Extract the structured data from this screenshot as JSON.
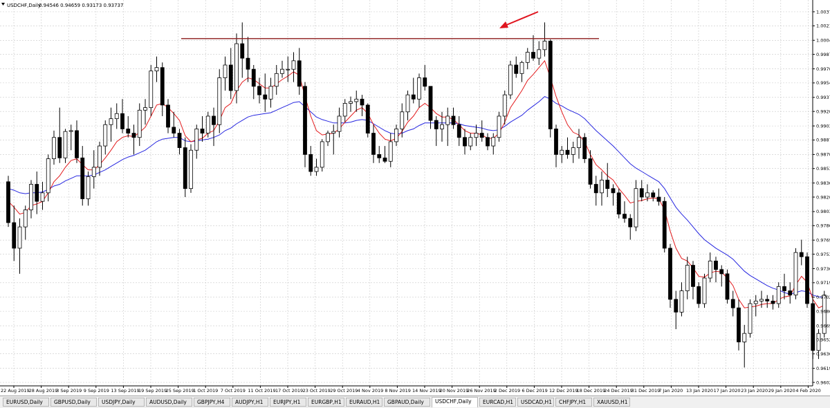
{
  "chart_data": {
    "type": "candlestick",
    "symbol": "USDCHF,Daily",
    "ohlc_text": "0.94546 0.94659 0.93173 0.93737",
    "y_ticks": [
      "1.00375",
      "1.00210",
      "1.00040",
      "0.99875",
      "0.99705",
      "0.99540",
      "0.99370",
      "0.99205",
      "0.99035",
      "0.98870",
      "0.98700",
      "0.98535",
      "0.98365",
      "0.98200",
      "0.98030",
      "0.97865",
      "0.97695",
      "0.97530",
      "0.97360",
      "0.97195",
      "0.97025",
      "0.96860",
      "0.96690",
      "0.96525",
      "0.96360",
      "0.96190",
      "0.96025"
    ],
    "x_ticks": [
      "22 Aug 2019",
      "28 Aug 2019",
      "3 Sep 2019",
      "9 Sep 2019",
      "13 Sep 2019",
      "19 Sep 2019",
      "25 Sep 2019",
      "1 Oct 2019",
      "7 Oct 2019",
      "11 Oct 2019",
      "17 Oct 2019",
      "23 Oct 2019",
      "29 Oct 2019",
      "4 Nov 2019",
      "8 Nov 2019",
      "14 Nov 2019",
      "20 Nov 2019",
      "26 Nov 2019",
      "2 Dec 2019",
      "6 Dec 2019",
      "12 Dec 2019",
      "18 Dec 2019",
      "24 Dec 2019",
      "31 Dec 2019",
      "7 Jan 2020",
      "13 Jan 2020",
      "17 Jan 2020",
      "23 Jan 2020",
      "29 Jan 2020",
      "4 Feb 2020"
    ],
    "ylim": [
      0.96025,
      1.00375
    ],
    "grid": true,
    "resistance_level": 1.0006,
    "candles": [
      [
        0.9838,
        0.9845,
        0.9785,
        0.979
      ],
      [
        0.979,
        0.981,
        0.9745,
        0.976
      ],
      [
        0.976,
        0.9795,
        0.973,
        0.9785
      ],
      [
        0.9785,
        0.981,
        0.977,
        0.9805
      ],
      [
        0.9805,
        0.984,
        0.9795,
        0.9835
      ],
      [
        0.9835,
        0.985,
        0.98,
        0.9815
      ],
      [
        0.9815,
        0.9838,
        0.9805,
        0.9825
      ],
      [
        0.9825,
        0.987,
        0.9815,
        0.9865
      ],
      [
        0.9865,
        0.9898,
        0.9858,
        0.989
      ],
      [
        0.989,
        0.9925,
        0.986,
        0.9866
      ],
      [
        0.9866,
        0.99,
        0.986,
        0.9897
      ],
      [
        0.9897,
        0.9905,
        0.9875,
        0.9898
      ],
      [
        0.9898,
        0.991,
        0.986,
        0.9866
      ],
      [
        0.9866,
        0.988,
        0.981,
        0.9818
      ],
      [
        0.9818,
        0.985,
        0.981,
        0.9844
      ],
      [
        0.9844,
        0.9875,
        0.983,
        0.9855
      ],
      [
        0.9855,
        0.9885,
        0.9845,
        0.988
      ],
      [
        0.988,
        0.991,
        0.987,
        0.9905
      ],
      [
        0.9905,
        0.9925,
        0.9885,
        0.9912
      ],
      [
        0.9912,
        0.993,
        0.99,
        0.9918
      ],
      [
        0.9918,
        0.9935,
        0.9895,
        0.99
      ],
      [
        0.99,
        0.9915,
        0.989,
        0.9895
      ],
      [
        0.9895,
        0.9905,
        0.987,
        0.989
      ],
      [
        0.989,
        0.993,
        0.988,
        0.9922
      ],
      [
        0.9922,
        0.9935,
        0.9905,
        0.9925
      ],
      [
        0.9925,
        0.9975,
        0.9915,
        0.9968
      ],
      [
        0.9968,
        0.9985,
        0.9955,
        0.9972
      ],
      [
        0.9972,
        0.9978,
        0.9915,
        0.9928
      ],
      [
        0.9928,
        0.9935,
        0.9895,
        0.9902
      ],
      [
        0.9902,
        0.992,
        0.989,
        0.9895
      ],
      [
        0.9895,
        0.99,
        0.987,
        0.9878
      ],
      [
        0.9878,
        0.989,
        0.982,
        0.983
      ],
      [
        0.983,
        0.9882,
        0.9825,
        0.9875
      ],
      [
        0.9875,
        0.9905,
        0.9865,
        0.99
      ],
      [
        0.99,
        0.9915,
        0.9885,
        0.9895
      ],
      [
        0.9895,
        0.992,
        0.989,
        0.9915
      ],
      [
        0.9915,
        0.9925,
        0.988,
        0.9905
      ],
      [
        0.9905,
        0.997,
        0.9895,
        0.996
      ],
      [
        0.996,
        0.9985,
        0.9945,
        0.9975
      ],
      [
        0.9975,
        0.9995,
        0.9935,
        0.9945
      ],
      [
        0.9945,
        1.0012,
        0.993,
        1.0
      ],
      [
        1.0,
        1.0025,
        0.996,
        0.9983
      ],
      [
        0.9983,
        1.0008,
        0.9955,
        0.997
      ],
      [
        0.997,
        0.9975,
        0.9935,
        0.995
      ],
      [
        0.995,
        0.996,
        0.993,
        0.994
      ],
      [
        0.994,
        0.9965,
        0.992,
        0.9935
      ],
      [
        0.9935,
        0.996,
        0.9925,
        0.995
      ],
      [
        0.995,
        0.9975,
        0.994,
        0.9965
      ],
      [
        0.9965,
        0.998,
        0.996,
        0.997
      ],
      [
        0.997,
        0.9985,
        0.9955,
        0.997
      ],
      [
        0.997,
        0.999,
        0.9955,
        0.998
      ],
      [
        0.998,
        0.9995,
        0.994,
        0.995
      ],
      [
        0.995,
        0.9955,
        0.9855,
        0.987
      ],
      [
        0.987,
        0.988,
        0.9845,
        0.985
      ],
      [
        0.985,
        0.9865,
        0.9845,
        0.9855
      ],
      [
        0.9855,
        0.9888,
        0.985,
        0.9885
      ],
      [
        0.9885,
        0.9898,
        0.988,
        0.9895
      ],
      [
        0.9895,
        0.9905,
        0.987,
        0.9897
      ],
      [
        0.9897,
        0.9925,
        0.989,
        0.9915
      ],
      [
        0.9915,
        0.9935,
        0.9908,
        0.993
      ],
      [
        0.993,
        0.9938,
        0.992,
        0.9932
      ],
      [
        0.9932,
        0.9945,
        0.992,
        0.9935
      ],
      [
        0.9935,
        0.994,
        0.9915,
        0.9928
      ],
      [
        0.9928,
        0.993,
        0.989,
        0.9895
      ],
      [
        0.9895,
        0.9905,
        0.986,
        0.987
      ],
      [
        0.987,
        0.988,
        0.986,
        0.9866
      ],
      [
        0.9866,
        0.988,
        0.986,
        0.9862
      ],
      [
        0.9862,
        0.9895,
        0.9855,
        0.9885
      ],
      [
        0.9885,
        0.9905,
        0.988,
        0.99
      ],
      [
        0.99,
        0.993,
        0.989,
        0.992
      ],
      [
        0.992,
        0.9945,
        0.991,
        0.994
      ],
      [
        0.994,
        0.996,
        0.993,
        0.9935
      ],
      [
        0.9935,
        0.9965,
        0.9925,
        0.996
      ],
      [
        0.996,
        0.9975,
        0.9945,
        0.995
      ],
      [
        0.995,
        0.995,
        0.99,
        0.991
      ],
      [
        0.991,
        0.9915,
        0.988,
        0.99
      ],
      [
        0.99,
        0.992,
        0.9885,
        0.9905
      ],
      [
        0.9905,
        0.9925,
        0.988,
        0.9915
      ],
      [
        0.9915,
        0.9925,
        0.99,
        0.9905
      ],
      [
        0.9905,
        0.9915,
        0.988,
        0.989
      ],
      [
        0.989,
        0.99,
        0.987,
        0.988
      ],
      [
        0.988,
        0.9895,
        0.9875,
        0.989
      ],
      [
        0.989,
        0.9905,
        0.988,
        0.9895
      ],
      [
        0.9895,
        0.991,
        0.9885,
        0.989
      ],
      [
        0.989,
        0.9895,
        0.9875,
        0.988
      ],
      [
        0.988,
        0.9895,
        0.987,
        0.989
      ],
      [
        0.989,
        0.992,
        0.9885,
        0.9915
      ],
      [
        0.9915,
        0.9945,
        0.9905,
        0.994
      ],
      [
        0.994,
        0.998,
        0.9935,
        0.9975
      ],
      [
        0.9975,
        0.9985,
        0.996,
        0.9965
      ],
      [
        0.9965,
        0.998,
        0.9955,
        0.9978
      ],
      [
        0.9978,
        0.9995,
        0.997,
        0.999
      ],
      [
        0.999,
        1.001,
        0.998,
        0.9983
      ],
      [
        0.9983,
        1.0003,
        0.9975,
        0.9993
      ],
      [
        0.9993,
        1.0025,
        0.9985,
        1.0003
      ],
      [
        1.0003,
        1.0005,
        0.989,
        0.99
      ],
      [
        0.99,
        0.9905,
        0.9855,
        0.987
      ],
      [
        0.987,
        0.988,
        0.986,
        0.9875
      ],
      [
        0.9875,
        0.989,
        0.9865,
        0.987
      ],
      [
        0.987,
        0.9885,
        0.986,
        0.9878
      ],
      [
        0.9878,
        0.99,
        0.9865,
        0.989
      ],
      [
        0.989,
        0.9895,
        0.986,
        0.9865
      ],
      [
        0.9865,
        0.9875,
        0.983,
        0.9835
      ],
      [
        0.9835,
        0.9845,
        0.981,
        0.9825
      ],
      [
        0.9825,
        0.985,
        0.981,
        0.984
      ],
      [
        0.984,
        0.986,
        0.982,
        0.983
      ],
      [
        0.983,
        0.9835,
        0.981,
        0.9825
      ],
      [
        0.9825,
        0.983,
        0.9795,
        0.98
      ],
      [
        0.98,
        0.9815,
        0.979,
        0.9795
      ],
      [
        0.9795,
        0.98,
        0.977,
        0.9785
      ],
      [
        0.9785,
        0.984,
        0.978,
        0.983
      ],
      [
        0.983,
        0.984,
        0.9815,
        0.982
      ],
      [
        0.982,
        0.9835,
        0.9815,
        0.9825
      ],
      [
        0.9825,
        0.9828,
        0.9815,
        0.982
      ],
      [
        0.982,
        0.983,
        0.981,
        0.9815
      ],
      [
        0.9815,
        0.982,
        0.9755,
        0.976
      ],
      [
        0.976,
        0.9765,
        0.969,
        0.97
      ],
      [
        0.97,
        0.971,
        0.9665,
        0.9685
      ],
      [
        0.9685,
        0.972,
        0.968,
        0.971
      ],
      [
        0.971,
        0.975,
        0.97,
        0.974
      ],
      [
        0.974,
        0.9745,
        0.97,
        0.9715
      ],
      [
        0.9715,
        0.972,
        0.969,
        0.9695
      ],
      [
        0.9695,
        0.973,
        0.969,
        0.9725
      ],
      [
        0.9725,
        0.9755,
        0.972,
        0.9745
      ],
      [
        0.9745,
        0.975,
        0.972,
        0.9735
      ],
      [
        0.9735,
        0.974,
        0.9715,
        0.973
      ],
      [
        0.973,
        0.9735,
        0.9695,
        0.97
      ],
      [
        0.97,
        0.971,
        0.968,
        0.969
      ],
      [
        0.969,
        0.97,
        0.964,
        0.965
      ],
      [
        0.965,
        0.967,
        0.962,
        0.966
      ],
      [
        0.966,
        0.97,
        0.9655,
        0.9695
      ],
      [
        0.9695,
        0.9705,
        0.968,
        0.9698
      ],
      [
        0.9698,
        0.971,
        0.969,
        0.97
      ],
      [
        0.97,
        0.9705,
        0.969,
        0.9698
      ],
      [
        0.9698,
        0.9705,
        0.9688,
        0.9695
      ],
      [
        0.9695,
        0.972,
        0.969,
        0.9715
      ],
      [
        0.9715,
        0.973,
        0.97,
        0.971
      ],
      [
        0.971,
        0.972,
        0.9695,
        0.9705
      ],
      [
        0.9705,
        0.976,
        0.97,
        0.9755
      ],
      [
        0.9755,
        0.977,
        0.974,
        0.975
      ],
      [
        0.975,
        0.9755,
        0.969,
        0.9695
      ],
      [
        0.9695,
        0.97,
        0.963,
        0.964
      ],
      [
        0.964,
        0.9665,
        0.963,
        0.966
      ],
      [
        0.966,
        0.971,
        0.9655,
        0.9705
      ]
    ],
    "ma_fast": [
      0.9815,
      0.9808,
      0.98,
      0.9802,
      0.981,
      0.9812,
      0.9815,
      0.9825,
      0.9838,
      0.9845,
      0.9855,
      0.9863,
      0.9865,
      0.9858,
      0.9852,
      0.9852,
      0.9858,
      0.9866,
      0.9875,
      0.9885,
      0.989,
      0.9892,
      0.9891,
      0.9896,
      0.9902,
      0.9915,
      0.9928,
      0.993,
      0.9925,
      0.9918,
      0.991,
      0.9892,
      0.9885,
      0.9887,
      0.9889,
      0.9895,
      0.9898,
      0.991,
      0.9925,
      0.993,
      0.9945,
      0.9955,
      0.996,
      0.9958,
      0.9953,
      0.9948,
      0.9948,
      0.9953,
      0.9958,
      0.9962,
      0.9967,
      0.9963,
      0.9938,
      0.9915,
      0.9898,
      0.9893,
      0.9894,
      0.9895,
      0.99,
      0.9908,
      0.9915,
      0.9922,
      0.9925,
      0.9918,
      0.9905,
      0.9895,
      0.9888,
      0.9886,
      0.9889,
      0.9897,
      0.9908,
      0.9915,
      0.9925,
      0.993,
      0.9925,
      0.9918,
      0.9914,
      0.9914,
      0.9911,
      0.9905,
      0.9898,
      0.9895,
      0.9895,
      0.9893,
      0.9889,
      0.9889,
      0.9895,
      0.9908,
      0.9925,
      0.9935,
      0.9945,
      0.9957,
      0.9964,
      0.9972,
      0.998,
      0.996,
      0.9938,
      0.992,
      0.9905,
      0.9896,
      0.9893,
      0.9885,
      0.987,
      0.9858,
      0.9852,
      0.9845,
      0.984,
      0.983,
      0.9822,
      0.9813,
      0.9815,
      0.9816,
      0.9818,
      0.9819,
      0.9818,
      0.9805,
      0.978,
      0.976,
      0.9748,
      0.9745,
      0.9737,
      0.9727,
      0.9726,
      0.9731,
      0.9733,
      0.9732,
      0.9725,
      0.9716,
      0.97,
      0.969,
      0.9691,
      0.9692,
      0.9694,
      0.9695,
      0.9695,
      0.97,
      0.9703,
      0.9704,
      0.9717,
      0.9727,
      0.972,
      0.97,
      0.969,
      0.9693
    ],
    "ma_slow": [
      0.983,
      0.9828,
      0.9825,
      0.9824,
      0.9825,
      0.9825,
      0.9826,
      0.9829,
      0.9833,
      0.9835,
      0.9839,
      0.9842,
      0.9845,
      0.9845,
      0.9845,
      0.9846,
      0.9849,
      0.9852,
      0.9856,
      0.986,
      0.9864,
      0.9867,
      0.9869,
      0.9872,
      0.9875,
      0.988,
      0.9885,
      0.9888,
      0.9889,
      0.989,
      0.989,
      0.9886,
      0.9885,
      0.9886,
      0.9887,
      0.9888,
      0.989,
      0.9893,
      0.9898,
      0.9901,
      0.9906,
      0.991,
      0.9914,
      0.9916,
      0.9917,
      0.9918,
      0.9919,
      0.9922,
      0.9925,
      0.9928,
      0.9931,
      0.9932,
      0.9926,
      0.992,
      0.9914,
      0.9911,
      0.9909,
      0.9907,
      0.9907,
      0.9907,
      0.9908,
      0.991,
      0.9911,
      0.991,
      0.9906,
      0.9902,
      0.9898,
      0.9895,
      0.9894,
      0.9895,
      0.9898,
      0.99,
      0.9904,
      0.9907,
      0.9907,
      0.9907,
      0.9907,
      0.9907,
      0.9907,
      0.9906,
      0.9904,
      0.9903,
      0.9902,
      0.9901,
      0.9899,
      0.9898,
      0.9899,
      0.9903,
      0.9908,
      0.9912,
      0.9916,
      0.9922,
      0.9927,
      0.9932,
      0.9938,
      0.9935,
      0.993,
      0.9927,
      0.9923,
      0.992,
      0.9917,
      0.9912,
      0.9905,
      0.9898,
      0.9892,
      0.9886,
      0.988,
      0.9873,
      0.9866,
      0.9859,
      0.9854,
      0.985,
      0.9846,
      0.9842,
      0.9838,
      0.983,
      0.9819,
      0.9808,
      0.98,
      0.9793,
      0.9785,
      0.9777,
      0.977,
      0.9765,
      0.976,
      0.9756,
      0.9752,
      0.9747,
      0.974,
      0.9733,
      0.9728,
      0.9724,
      0.972,
      0.9716,
      0.9713,
      0.9711,
      0.9708,
      0.9706,
      0.9708,
      0.971,
      0.9709,
      0.9705,
      0.9703,
      0.9702
    ]
  },
  "tabs": [
    {
      "label": "EURUSD,Daily",
      "active": false
    },
    {
      "label": "GBPUSD,Daily",
      "active": false
    },
    {
      "label": "USDJPY,Daily",
      "active": false
    },
    {
      "label": "AUDUSD,Daily",
      "active": false
    },
    {
      "label": "GBPJPY,H4",
      "active": false
    },
    {
      "label": "AUDJPY,H1",
      "active": false
    },
    {
      "label": "EURJPY,H1",
      "active": false
    },
    {
      "label": "EURGBP,H1",
      "active": false
    },
    {
      "label": "EURAUD,H1",
      "active": false
    },
    {
      "label": "GBPAUD,Daily",
      "active": false
    },
    {
      "label": "USDCHF,Daily",
      "active": true
    },
    {
      "label": "EURCAD,H1",
      "active": false
    },
    {
      "label": "USDCAD,H1",
      "active": false
    },
    {
      "label": "CHFJPY,H1",
      "active": false
    },
    {
      "label": "XAUUSD,H1",
      "active": false
    }
  ],
  "colors": {
    "bull_body": "#ffffff",
    "bear_body": "#000000",
    "grid": "#c8c8c8",
    "ma_fast": "#e31a1c",
    "ma_slow": "#2626e0",
    "resistance": "#8b1a1a",
    "arrow": "#e0141e"
  }
}
